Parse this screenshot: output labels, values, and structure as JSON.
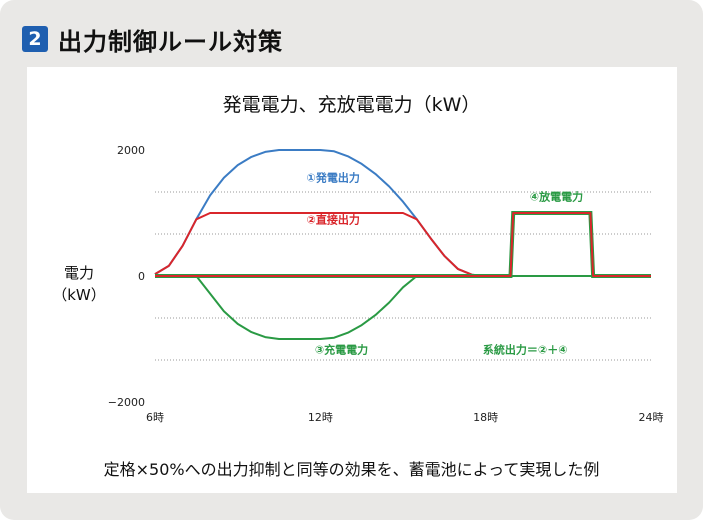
{
  "header": {
    "badge": "2",
    "title": "出力制御ルール対策"
  },
  "caption": "定格×50%への出力抑制と同等の効果を、蓄電池によって実現した例",
  "chart_data": {
    "type": "line",
    "title": "発電電力、充放電電力（kW）",
    "ylabel_line1": "電力",
    "ylabel_line2": "（kW）",
    "xlabel": "",
    "xticks": [
      {
        "value": 6,
        "label": "6時"
      },
      {
        "value": 12,
        "label": "12時"
      },
      {
        "value": 18,
        "label": "18時"
      },
      {
        "value": 24,
        "label": "24時"
      }
    ],
    "yticks": [
      {
        "value": 2000,
        "label": "2000"
      },
      {
        "value": 0,
        "label": "0"
      },
      {
        "value": -2000,
        "label": "−2000"
      }
    ],
    "xlim": [
      6,
      24
    ],
    "ylim": [
      -2000,
      2000
    ],
    "gridlines_y": [
      1333,
      667,
      -667,
      -1333
    ],
    "series": [
      {
        "name": "①発電出力",
        "color": "#3b7cc4",
        "x": [
          6.0,
          6.5,
          7.0,
          7.5,
          8.0,
          8.5,
          9.0,
          9.5,
          10.0,
          10.5,
          11.0,
          11.5,
          12.0,
          12.5,
          13.0,
          13.5,
          14.0,
          14.5,
          15.0,
          15.5,
          16.0,
          16.5,
          17.0,
          17.5,
          18.0
        ],
        "values": [
          30,
          160,
          480,
          900,
          1280,
          1560,
          1760,
          1890,
          1970,
          2000,
          2000,
          2000,
          2000,
          1980,
          1900,
          1780,
          1620,
          1420,
          1180,
          900,
          600,
          320,
          110,
          20,
          0
        ]
      },
      {
        "name": "②直接出力",
        "color": "#d9262b",
        "x": [
          6.0,
          6.5,
          7.0,
          7.5,
          8.0,
          8.5,
          9.0,
          9.5,
          10.0,
          10.5,
          11.0,
          11.5,
          12.0,
          12.5,
          13.0,
          13.5,
          14.0,
          14.5,
          15.0,
          15.5,
          16.0,
          16.5,
          17.0,
          17.5,
          18.0
        ],
        "values": [
          30,
          160,
          480,
          900,
          1000,
          1000,
          1000,
          1000,
          1000,
          1000,
          1000,
          1000,
          1000,
          1000,
          1000,
          1000,
          1000,
          1000,
          1000,
          900,
          600,
          320,
          110,
          20,
          0
        ]
      },
      {
        "name": "③充電電力",
        "color": "#2a9a44",
        "x": [
          6.0,
          7.5,
          8.0,
          8.5,
          9.0,
          9.5,
          10.0,
          10.5,
          11.0,
          11.5,
          12.0,
          12.5,
          13.0,
          13.5,
          14.0,
          14.5,
          15.0,
          15.5,
          18.0,
          24.0
        ],
        "values": [
          0,
          0,
          -280,
          -560,
          -760,
          -890,
          -970,
          -1000,
          -1000,
          -1000,
          -1000,
          -980,
          -900,
          -780,
          -620,
          -420,
          -180,
          0,
          0,
          0
        ]
      },
      {
        "name": "④放電電力",
        "color": "#d9262b",
        "outline_color": "#2a9a44",
        "x": [
          6.0,
          18.0,
          18.9,
          19.0,
          21.8,
          21.9,
          24.0
        ],
        "values": [
          0,
          0,
          0,
          1000,
          1000,
          0,
          0
        ]
      }
    ],
    "annotations": [
      {
        "text": "①発電出力",
        "color": "#3b7cc4",
        "x": 11.5,
        "y": 1500
      },
      {
        "text": "②直接出力",
        "color": "#d9262b",
        "x": 11.5,
        "y": 830
      },
      {
        "text": "③充電電力",
        "color": "#2a9a44",
        "x": 11.8,
        "y": -1230
      },
      {
        "text": "④放電電力",
        "color": "#2a9a44",
        "x": 19.6,
        "y": 1200
      },
      {
        "text": "系統出力＝②＋④",
        "color": "#2a9a44",
        "x": 17.9,
        "y": -1230
      }
    ]
  }
}
